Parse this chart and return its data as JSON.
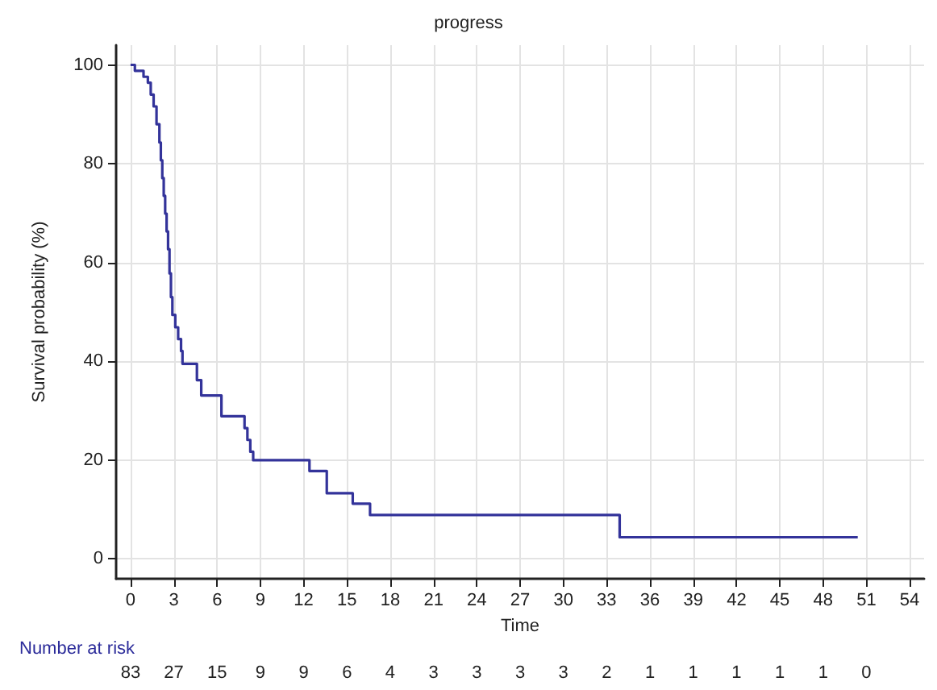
{
  "chart_data": {
    "type": "step",
    "title": "progress",
    "xlabel": "Time",
    "ylabel": "Survival probability (%)",
    "x": [
      0,
      0.3,
      0.9,
      1.2,
      1.4,
      1.6,
      1.8,
      2.0,
      2.1,
      2.2,
      2.3,
      2.4,
      2.5,
      2.6,
      2.7,
      2.8,
      2.9,
      3.1,
      3.3,
      3.5,
      3.6,
      4.6,
      4.9,
      6.3,
      7.9,
      8.1,
      8.3,
      8.5,
      12.4,
      13.6,
      15.4,
      16.6,
      33.9,
      50.4
    ],
    "series": [
      {
        "color": "#33339a",
        "values": [
          100,
          98.8,
          97.6,
          96.4,
          94,
          91.6,
          88,
          84.3,
          80.7,
          77.1,
          73.5,
          69.9,
          66.3,
          62.7,
          57.8,
          53,
          49.4,
          46.9,
          44.5,
          42.1,
          39.5,
          36.2,
          33.1,
          28.9,
          26.5,
          24.1,
          21.7,
          20,
          17.8,
          13.3,
          11.2,
          8.9,
          4.4,
          4.4
        ]
      }
    ],
    "xlim": [
      -1,
      55
    ],
    "xticks": [
      0,
      3,
      6,
      9,
      12,
      15,
      18,
      21,
      24,
      27,
      30,
      33,
      36,
      39,
      42,
      45,
      48,
      51,
      54
    ],
    "ylim": [
      -4,
      104
    ],
    "yticks": [
      0,
      20,
      40,
      60,
      80,
      100
    ],
    "grid": true,
    "marker": "none",
    "line_style": "solid",
    "annotations": [
      "Number at risk",
      "83",
      "27",
      "15",
      "9",
      "9",
      "6",
      "4",
      "3",
      "3",
      "3",
      "3",
      "2",
      "1",
      "1",
      "1",
      "1",
      "1",
      "0"
    ]
  }
}
